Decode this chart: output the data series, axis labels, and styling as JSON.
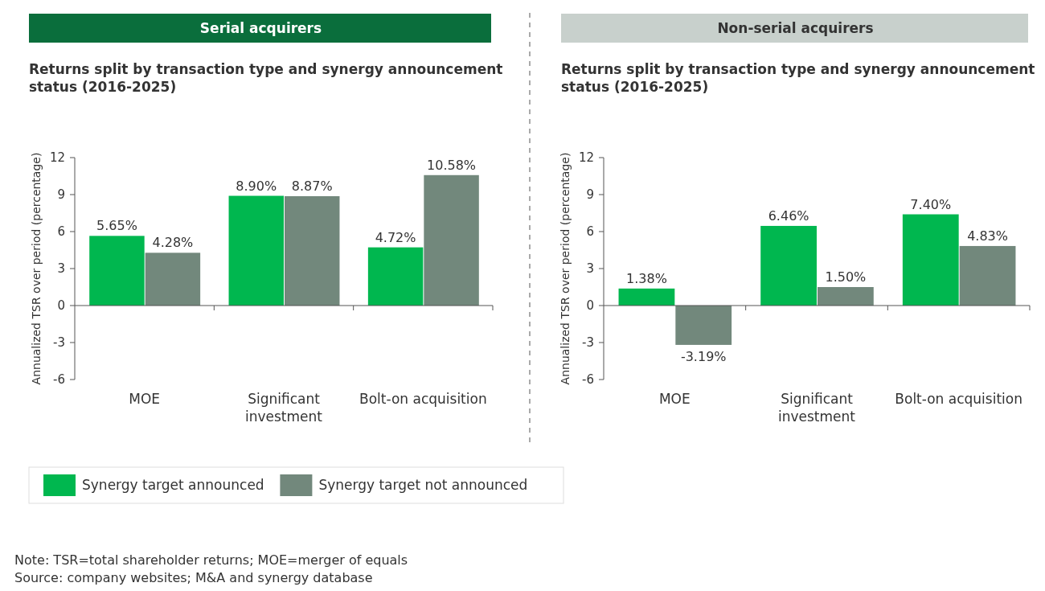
{
  "chart_data": [
    {
      "type": "bar",
      "title": "Serial acquirers",
      "subtitle": "Returns split by transaction type and synergy announcement status (2016-2025)",
      "ylabel": "Annualized TSR over period (percentage)",
      "categories": [
        "MOE",
        "Significant investment",
        "Bolt-on acquisition"
      ],
      "ylim": [
        -6,
        12
      ],
      "yticks": [
        -6,
        -3,
        0,
        3,
        6,
        9,
        12
      ],
      "legend": "bottom",
      "series": [
        {
          "name": "Synergy target announced",
          "color": "#00b74f",
          "values": [
            5.65,
            8.9,
            4.72
          ],
          "value_labels": [
            "5.65%",
            "8.90%",
            "4.72%"
          ]
        },
        {
          "name": "Synergy target not announced",
          "color": "#72887c",
          "values": [
            4.28,
            8.87,
            10.58
          ],
          "value_labels": [
            "4.28%",
            "8.87%",
            "10.58%"
          ]
        }
      ],
      "annotations": [
        "Note: TSR=total shareholder returns; MOE=merger of equals",
        "Source: company websites; M&A and synergy database"
      ]
    },
    {
      "type": "bar",
      "title": "Non-serial acquirers",
      "subtitle": "Returns split by transaction type and synergy announcement status (2016-2025)",
      "ylabel": "Annualized TSR over period (percentage)",
      "categories": [
        "MOE",
        "Significant investment",
        "Bolt-on acquisition"
      ],
      "ylim": [
        -6,
        12
      ],
      "yticks": [
        -6,
        -3,
        0,
        3,
        6,
        9,
        12
      ],
      "series": [
        {
          "color": "#00b74f",
          "values": [
            1.38,
            6.46,
            7.4
          ],
          "value_labels": [
            "1.38%",
            "6.46%",
            "7.40%"
          ]
        },
        {
          "color": "#72887c",
          "values": [
            -3.19,
            1.5,
            4.83
          ],
          "value_labels": [
            "-3.19%",
            "1.50%",
            "4.83%"
          ]
        }
      ]
    }
  ]
}
